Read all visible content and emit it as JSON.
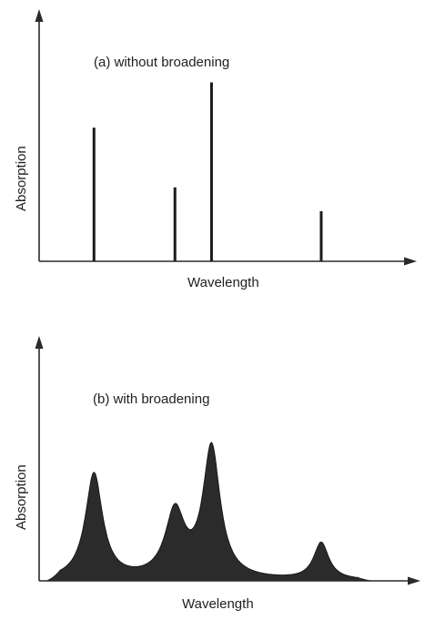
{
  "panel_a": {
    "title": "(a) without broadening",
    "xlabel": "Wavelength",
    "ylabel": "Absorption",
    "lines": [
      {
        "position": 0.21,
        "height": 0.56
      },
      {
        "position": 0.52,
        "height": 0.31
      },
      {
        "position": 0.66,
        "height": 0.75
      },
      {
        "position": 1.08,
        "height": 0.21
      }
    ]
  },
  "panel_b": {
    "title": "(b) with broadening",
    "xlabel": "Wavelength",
    "ylabel": "Absorption",
    "peaks": [
      {
        "position": 0.21,
        "height": 0.89,
        "width": 0.04
      },
      {
        "position": 0.52,
        "height": 0.55,
        "width": 0.045
      },
      {
        "position": 0.66,
        "height": 1.1,
        "width": 0.04
      },
      {
        "position": 1.08,
        "height": 0.31,
        "width": 0.035
      }
    ]
  }
}
